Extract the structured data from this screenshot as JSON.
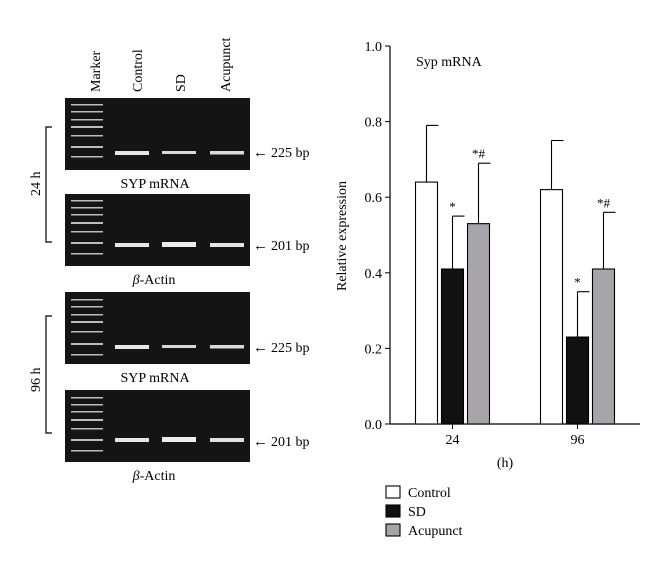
{
  "gel": {
    "lane_headers": [
      "Marker",
      "Control",
      "SD",
      "Acupunct"
    ],
    "time_labels": [
      "24 h",
      "96 h"
    ],
    "panels": [
      {
        "caption": "SYP mRNA",
        "size": "225 bp"
      },
      {
        "caption": "-Actin",
        "caption_prefix": "β",
        "size": "201 bp"
      },
      {
        "caption": "SYP mRNA",
        "size": "225 bp"
      },
      {
        "caption": "-Actin",
        "caption_prefix": "β",
        "size": "201 bp"
      }
    ],
    "arrow": "←"
  },
  "chart_data": {
    "type": "bar",
    "title": "Syp mRNA",
    "ylabel": "Relative expression",
    "xlabel": "(h)",
    "categories": [
      "24",
      "96"
    ],
    "ylim": [
      0,
      1.0
    ],
    "yticks": [
      "0.0",
      "0.2",
      "0.4",
      "0.6",
      "0.8",
      "1.0"
    ],
    "series": [
      {
        "name": "Control",
        "color": "#ffffff",
        "values": [
          0.64,
          0.62
        ],
        "errors": [
          0.15,
          0.13
        ],
        "marks": [
          "",
          ""
        ]
      },
      {
        "name": "SD",
        "color": "#111111",
        "values": [
          0.41,
          0.23
        ],
        "errors": [
          0.14,
          0.12
        ],
        "marks": [
          "*",
          "*"
        ]
      },
      {
        "name": "Acupunct",
        "color": "#a7a5aa",
        "values": [
          0.53,
          0.41
        ],
        "errors": [
          0.16,
          0.15
        ],
        "marks": [
          "*#",
          "*#"
        ]
      }
    ],
    "legend_position": "bottom"
  }
}
